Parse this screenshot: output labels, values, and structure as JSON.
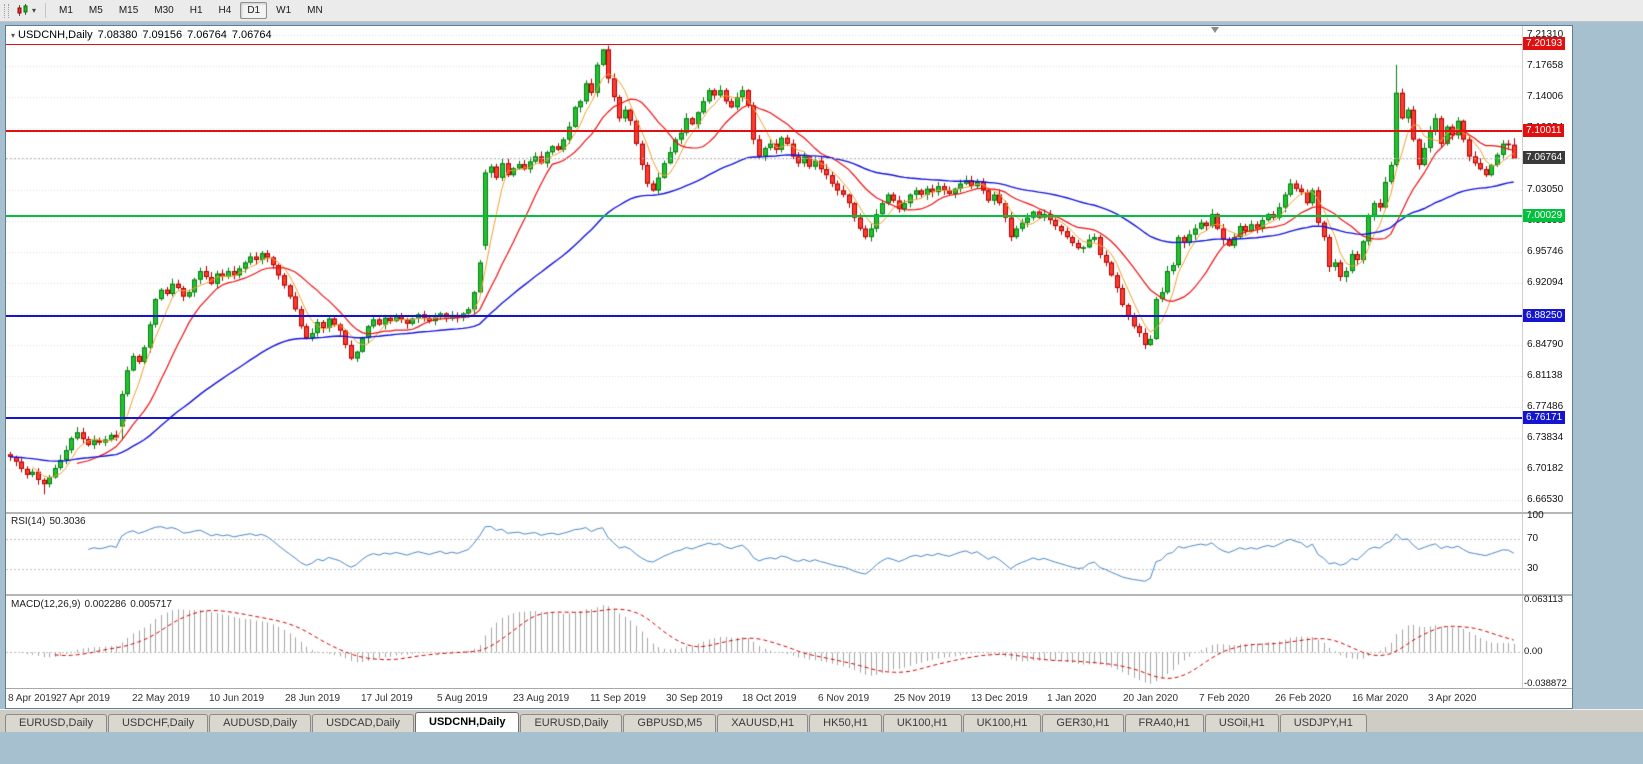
{
  "toolbar": {
    "timeframes": [
      "M1",
      "M5",
      "M15",
      "M30",
      "H1",
      "H4",
      "D1",
      "W1",
      "MN"
    ],
    "active": "D1"
  },
  "chart": {
    "title": {
      "symbol": "USDCNH,Daily",
      "open": "7.08380",
      "high": "7.09156",
      "low": "7.06764",
      "close": "7.06764"
    },
    "price_axis": {
      "labels": [
        "7.21310",
        "7.17658",
        "7.14006",
        "7.10354",
        "7.06702",
        "7.03050",
        "6.99398",
        "6.95746",
        "6.92094",
        "6.88442",
        "6.84790",
        "6.81138",
        "6.77486",
        "6.73834",
        "6.70182",
        "6.66530"
      ]
    },
    "hlines": [
      {
        "label": "7.20193",
        "price": 7.20193,
        "color": "#e01010",
        "width": 1
      },
      {
        "label": "7.10011",
        "price": 7.10011,
        "color": "#e01010",
        "width": 2
      },
      {
        "label": "7.00029",
        "price": 7.00029,
        "color": "#00c03c",
        "width": 2
      },
      {
        "label": "6.88250",
        "price": 6.8825,
        "color": "#1515cf",
        "width": 2
      },
      {
        "label": "6.76171",
        "price": 6.76171,
        "color": "#1515cf",
        "width": 2
      }
    ],
    "current": {
      "label": "7.06764",
      "price": 7.06764,
      "badge_color": "#3a3a3a"
    }
  },
  "rsi": {
    "name": "RSI(14)",
    "value": "50.3036",
    "period": 14,
    "color": "#4a87c7",
    "levels": [
      {
        "label": "100",
        "value": 100,
        "dashed": false
      },
      {
        "label": "70",
        "value": 70,
        "dashed": true
      },
      {
        "label": "30",
        "value": 30,
        "dashed": true
      }
    ]
  },
  "macd": {
    "name": "MACD(12,26,9)",
    "value_main": "0.002286",
    "value_signal": "0.005717",
    "axis": [
      {
        "label": "0.063113",
        "value": 0.063113
      },
      {
        "label": "0.00",
        "value": 0
      },
      {
        "label": "-0.038872",
        "value": -0.038872
      }
    ],
    "hist_color": "#a6a6a6",
    "signal_color": "#d40000"
  },
  "date_axis": [
    "8 Apr 2019",
    "27 Apr 2019",
    "22 May 2019",
    "10 Jun 2019",
    "28 Jun 2019",
    "17 Jul 2019",
    "5 Aug 2019",
    "23 Aug 2019",
    "11 Sep 2019",
    "30 Sep 2019",
    "18 Oct 2019",
    "6 Nov 2019",
    "25 Nov 2019",
    "13 Dec 2019",
    "1 Jan 2020",
    "20 Jan 2020",
    "7 Feb 2020",
    "26 Feb 2020",
    "16 Mar 2020",
    "3 Apr 2020"
  ],
  "tabs": [
    {
      "label": "EURUSD,Daily",
      "active": false
    },
    {
      "label": "USDCHF,Daily",
      "active": false
    },
    {
      "label": "AUDUSD,Daily",
      "active": false
    },
    {
      "label": "USDCAD,Daily",
      "active": false
    },
    {
      "label": "USDCNH,Daily",
      "active": true
    },
    {
      "label": "EURUSD,Daily",
      "active": false
    },
    {
      "label": "GBPUSD,M5",
      "active": false
    },
    {
      "label": "XAUUSD,H1",
      "active": false
    },
    {
      "label": "HK50,H1",
      "active": false
    },
    {
      "label": "UK100,H1",
      "active": false
    },
    {
      "label": "UK100,H1",
      "active": false
    },
    {
      "label": "GER30,H1",
      "active": false
    },
    {
      "label": "FRA40,H1",
      "active": false
    },
    {
      "label": "USOil,H1",
      "active": false
    },
    {
      "label": "USDJPY,H1",
      "active": false
    }
  ],
  "chart_data": {
    "type": "candlestick",
    "symbol": "USDCNH",
    "timeframe": "Daily",
    "price_top": 7.2131,
    "price_step": 0.03652,
    "bull_color": "#22c32e",
    "bull_border": "#0b7a16",
    "bear_color": "#ff3b30",
    "bear_border": "#b00000",
    "mas": [
      {
        "type": "sma",
        "period": 5,
        "color": "#f0a030",
        "width": 1
      },
      {
        "type": "sma",
        "period": 13,
        "color": "#ee1111",
        "width": 1.2
      },
      {
        "type": "ema",
        "period": 55,
        "color": "#1414dd",
        "width": 1.4
      }
    ],
    "closes": [
      6.716,
      6.7105,
      6.702,
      6.695,
      6.6985,
      6.689,
      6.684,
      6.692,
      6.703,
      6.7125,
      6.724,
      6.738,
      6.745,
      6.737,
      6.73,
      6.7355,
      6.733,
      6.7365,
      6.742,
      6.739,
      6.79,
      6.818,
      6.835,
      6.828,
      6.845,
      6.872,
      6.902,
      6.913,
      6.908,
      6.92,
      6.915,
      6.905,
      6.91,
      6.925,
      6.935,
      6.928,
      6.92,
      6.932,
      6.928,
      6.935,
      6.93,
      6.938,
      6.945,
      6.952,
      6.948,
      6.956,
      6.951,
      6.942,
      6.93,
      6.918,
      6.905,
      6.89,
      6.87,
      6.856,
      6.862,
      6.875,
      6.868,
      6.879,
      6.872,
      6.865,
      6.848,
      6.832,
      6.84,
      6.856,
      6.87,
      6.878,
      6.872,
      6.88,
      6.876,
      6.882,
      6.878,
      6.873,
      6.879,
      6.884,
      6.88,
      6.876,
      6.881,
      6.885,
      6.879,
      6.883,
      6.88,
      6.885,
      6.89,
      6.91,
      6.945,
      7.051,
      7.058,
      7.045,
      7.062,
      7.048,
      7.056,
      7.061,
      7.055,
      7.064,
      7.07,
      7.062,
      7.075,
      7.082,
      7.078,
      7.09,
      7.105,
      7.128,
      7.135,
      7.156,
      7.145,
      7.178,
      7.196,
      7.162,
      7.14,
      7.115,
      7.125,
      7.112,
      7.085,
      7.06,
      7.038,
      7.03,
      7.045,
      7.062,
      7.075,
      7.09,
      7.098,
      7.115,
      7.108,
      7.122,
      7.135,
      7.148,
      7.142,
      7.148,
      7.135,
      7.128,
      7.14,
      7.148,
      7.13,
      7.09,
      7.07,
      7.08,
      7.085,
      7.078,
      7.092,
      7.085,
      7.07,
      7.062,
      7.07,
      7.058,
      7.065,
      7.055,
      7.048,
      7.038,
      7.03,
      7.025,
      7.015,
      6.998,
      6.985,
      6.975,
      6.985,
      7.002,
      7.015,
      7.025,
      7.018,
      7.008,
      7.015,
      7.025,
      7.03,
      7.025,
      7.032,
      7.028,
      7.035,
      7.03,
      7.026,
      7.032,
      7.038,
      7.042,
      7.035,
      7.04,
      7.03,
      7.018,
      7.025,
      7.015,
      6.998,
      6.975,
      6.985,
      6.992,
      6.998,
      7.005,
      6.998,
      7.002,
      6.995,
      6.988,
      6.982,
      6.975,
      6.968,
      6.962,
      6.963,
      6.972,
      6.975,
      6.954,
      6.945,
      6.93,
      6.915,
      6.895,
      6.882,
      6.87,
      6.862,
      6.848,
      6.855,
      6.902,
      6.91,
      6.935,
      6.942,
      6.975,
      6.968,
      6.978,
      6.985,
      6.992,
      6.988,
      7.002,
      6.985,
      6.972,
      6.965,
      6.975,
      6.988,
      6.982,
      6.99,
      6.985,
      6.995,
      7.002,
      6.998,
      7.01,
      7.025,
      7.038,
      7.032,
      7.028,
      7.015,
      7.03,
      6.992,
      6.975,
      6.94,
      6.945,
      6.928,
      6.935,
      6.955,
      6.948,
      6.97,
      7.0,
      7.015,
      7.01,
      7.04,
      7.06,
      7.145,
      7.115,
      7.125,
      7.09,
      7.06,
      7.08,
      7.1,
      7.115,
      7.085,
      7.105,
      7.095,
      7.112,
      7.09,
      7.07,
      7.062,
      7.055,
      7.048,
      7.06,
      7.072,
      7.085,
      7.084,
      7.06764
    ],
    "overrides": {
      "0": {
        "o": 6.719
      },
      "6": {
        "l": 6.672
      },
      "20": {
        "o": 6.752
      },
      "85": {
        "o": 6.965,
        "l": 6.96
      },
      "106": {
        "h": 7.1965
      },
      "203": {
        "l": 6.843
      },
      "248": {
        "h": 7.178
      },
      "269": {
        "o": 7.0838,
        "h": 7.0916,
        "l": 7.0676
      }
    }
  },
  "colors": {
    "frame": "#a7c0d0",
    "toolbar_bg": "#ebebeb",
    "tabbar_bg": "#cfccc4",
    "tab_bg": "#dad7cf",
    "active_tab_bg": "#ffffff",
    "grid": "#dcdcdc"
  }
}
